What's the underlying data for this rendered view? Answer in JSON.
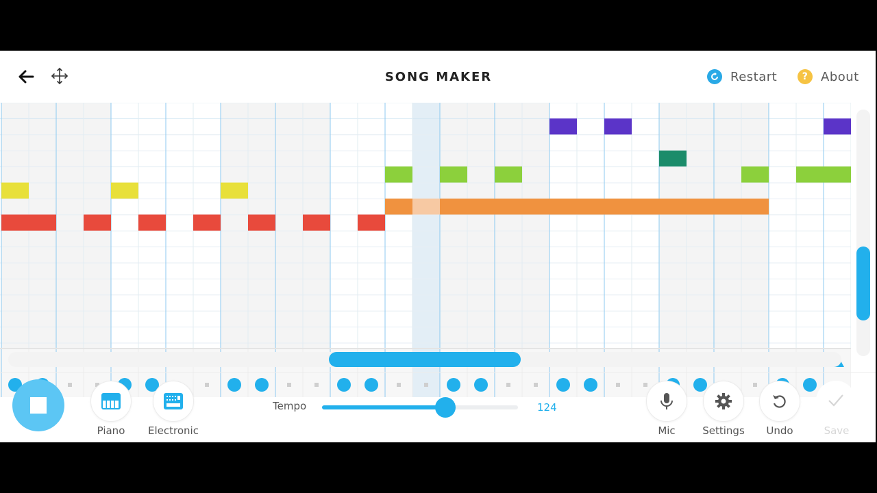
{
  "header": {
    "title": "SONG MAKER",
    "restart_label": "Restart",
    "about_label": "About",
    "about_glyph": "?"
  },
  "colors": {
    "accent": "#22b0ec",
    "restart": "#29a9e6",
    "about": "#f6c343",
    "play_button": "#5cc6f4",
    "note_red": "#e84a3c",
    "note_yellow": "#e8e03a",
    "note_orange": "#f0923f",
    "note_orange_light": "#f7c9a3",
    "note_green": "#8cd03c",
    "note_teal": "#1b8c6a",
    "note_purple": "#5b34c8"
  },
  "grid": {
    "columns": 31,
    "rows": 12,
    "playhead_column": 15,
    "notes": [
      {
        "col": 0,
        "row": 6,
        "len": 1,
        "color": "note_red"
      },
      {
        "col": 1,
        "row": 6,
        "len": 1,
        "color": "note_red"
      },
      {
        "col": 3,
        "row": 6,
        "len": 1,
        "color": "note_red"
      },
      {
        "col": 5,
        "row": 6,
        "len": 1,
        "color": "note_red"
      },
      {
        "col": 7,
        "row": 6,
        "len": 1,
        "color": "note_red"
      },
      {
        "col": 9,
        "row": 6,
        "len": 1,
        "color": "note_red"
      },
      {
        "col": 11,
        "row": 6,
        "len": 1,
        "color": "note_red"
      },
      {
        "col": 13,
        "row": 6,
        "len": 1,
        "color": "note_red"
      },
      {
        "col": 0,
        "row": 4,
        "len": 1,
        "color": "note_yellow"
      },
      {
        "col": 4,
        "row": 4,
        "len": 1,
        "color": "note_yellow"
      },
      {
        "col": 8,
        "row": 4,
        "len": 1,
        "color": "note_yellow"
      },
      {
        "col": 14,
        "row": 5,
        "len": 1,
        "color": "note_orange"
      },
      {
        "col": 15,
        "row": 5,
        "len": 1,
        "color": "note_orange_light"
      },
      {
        "col": 16,
        "row": 5,
        "len": 12,
        "color": "note_orange"
      },
      {
        "col": 14,
        "row": 3,
        "len": 1,
        "color": "note_green"
      },
      {
        "col": 16,
        "row": 3,
        "len": 1,
        "color": "note_green"
      },
      {
        "col": 18,
        "row": 3,
        "len": 1,
        "color": "note_green"
      },
      {
        "col": 27,
        "row": 3,
        "len": 1,
        "color": "note_green"
      },
      {
        "col": 29,
        "row": 3,
        "len": 2,
        "color": "note_green"
      },
      {
        "col": 24,
        "row": 2,
        "len": 1,
        "color": "note_teal"
      },
      {
        "col": 20,
        "row": 0,
        "len": 1,
        "color": "note_purple"
      },
      {
        "col": 22,
        "row": 0,
        "len": 1,
        "color": "note_purple"
      },
      {
        "col": 30,
        "row": 0,
        "len": 1,
        "color": "note_purple"
      }
    ]
  },
  "rhythm": {
    "triangles": [
      2,
      3,
      6,
      7,
      10,
      11,
      14,
      15,
      18,
      19,
      22,
      23,
      26,
      27,
      30
    ],
    "circles": [
      0,
      1,
      4,
      5,
      8,
      9,
      12,
      13,
      16,
      17,
      20,
      21,
      24,
      25,
      28,
      29
    ]
  },
  "horizontal_scroll": {
    "position": 0.5,
    "visible_fraction": 0.23
  },
  "vertical_scroll": {
    "position": 0.45
  },
  "controls": {
    "piano_label": "Piano",
    "electronic_label": "Electronic",
    "tempo_label": "Tempo",
    "tempo_value": "124",
    "tempo_fraction": 0.63,
    "mic_label": "Mic",
    "settings_label": "Settings",
    "undo_label": "Undo",
    "save_label": "Save"
  }
}
